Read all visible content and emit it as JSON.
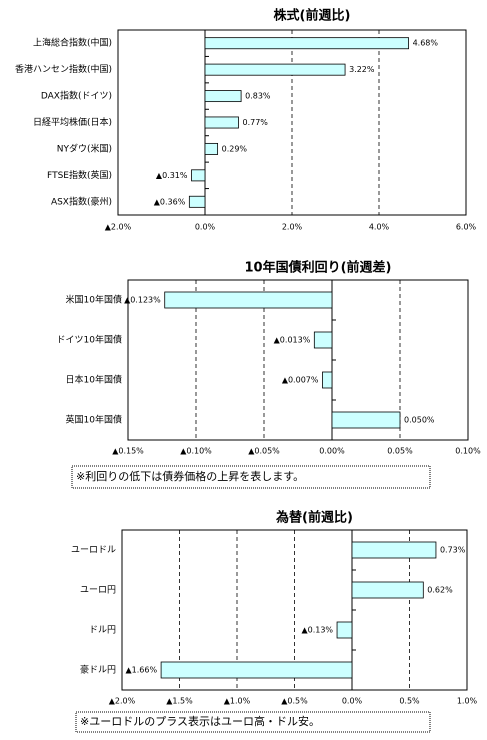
{
  "chart_data": [
    {
      "type": "hbar",
      "title": "株式(前週比)",
      "categories": [
        "上海総合指数(中国)",
        "香港ハンセン指数(中国)",
        "DAX指数(ドイツ)",
        "日経平均株価(日本)",
        "NYダウ(米国)",
        "FTSE指数(英国)",
        "ASX指数(豪州)"
      ],
      "values": [
        4.68,
        3.22,
        0.83,
        0.77,
        0.29,
        -0.31,
        -0.36
      ],
      "value_labels": [
        "4.68%",
        "3.22%",
        "0.83%",
        "0.77%",
        "0.29%",
        "▲0.31%",
        "▲0.36%"
      ],
      "color": "#ccffff",
      "xlim": [
        -2,
        6
      ],
      "xticks": [
        {
          "value": -2,
          "label": "▲2.0%"
        },
        {
          "value": 0,
          "label": "0.0%"
        },
        {
          "value": 2,
          "label": "2.0%"
        },
        {
          "value": 4,
          "label": "4.0%"
        },
        {
          "value": 6,
          "label": "6.0%"
        }
      ],
      "grid": true
    },
    {
      "type": "hbar",
      "title": "10年国債利回り(前週差)",
      "categories": [
        "米国10年国債",
        "ドイツ10年国債",
        "日本10年国債",
        "英国10年国債"
      ],
      "values": [
        -0.123,
        -0.013,
        -0.007,
        0.05
      ],
      "value_labels": [
        "▲0.123%",
        "▲0.013%",
        "▲0.007%",
        "0.050%"
      ],
      "color": "#ccffff",
      "xlim": [
        -0.15,
        0.1
      ],
      "xticks": [
        {
          "value": -0.15,
          "label": "▲0.15%"
        },
        {
          "value": -0.1,
          "label": "▲0.10%"
        },
        {
          "value": -0.05,
          "label": "▲0.05%"
        },
        {
          "value": 0,
          "label": "0.00%"
        },
        {
          "value": 0.05,
          "label": "0.05%"
        },
        {
          "value": 0.1,
          "label": "0.10%"
        }
      ],
      "grid": true,
      "note": "※利回りの低下は債券価格の上昇を表します。"
    },
    {
      "type": "hbar",
      "title": "為替(前週比)",
      "categories": [
        "ユーロドル",
        "ユーロ円",
        "ドル円",
        "豪ドル円"
      ],
      "values": [
        0.73,
        0.62,
        -0.13,
        -1.66
      ],
      "value_labels": [
        "0.73%",
        "0.62%",
        "▲0.13%",
        "▲1.66%"
      ],
      "color": "#ccffff",
      "xlim": [
        -2,
        1
      ],
      "xticks": [
        {
          "value": -2,
          "label": "▲2.0%"
        },
        {
          "value": -1.5,
          "label": "▲1.5%"
        },
        {
          "value": -1,
          "label": "▲1.0%"
        },
        {
          "value": -0.5,
          "label": "▲0.5%"
        },
        {
          "value": 0,
          "label": "0.0%"
        },
        {
          "value": 0.5,
          "label": "0.5%"
        },
        {
          "value": 1,
          "label": "1.0%"
        }
      ],
      "grid": true,
      "note": "※ユーロドルのプラス表示はユーロ高・ドル安。"
    }
  ]
}
